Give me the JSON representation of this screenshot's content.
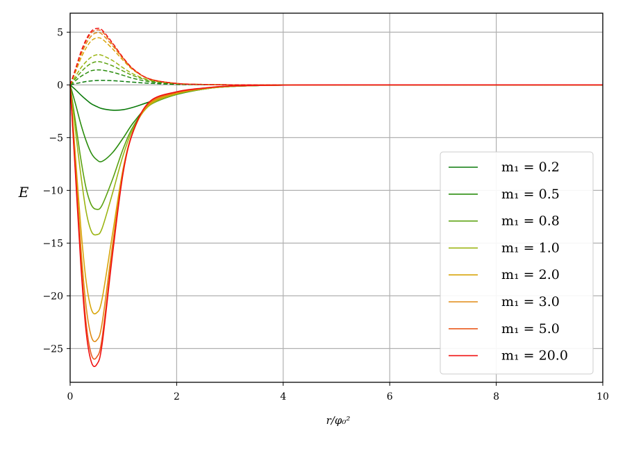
{
  "chart_data": {
    "type": "line",
    "title": "",
    "xlabel": "r/φ₀²",
    "ylabel": "E",
    "xlim": [
      0,
      10
    ],
    "ylim": [
      -28.2,
      6.8
    ],
    "xticks": [
      0,
      2,
      4,
      6,
      8,
      10
    ],
    "xtick_labels": [
      "0",
      "2",
      "4",
      "6",
      "8",
      "10"
    ],
    "yticks": [
      5,
      0,
      -5,
      -10,
      -15,
      -20,
      -25
    ],
    "ytick_labels": [
      "5",
      "0",
      "−5",
      "−10",
      "−15",
      "−20",
      "−25"
    ],
    "grid": true,
    "legend_position": "lower-right",
    "x": [
      0,
      0.1,
      0.2,
      0.3,
      0.4,
      0.5,
      0.6,
      0.8,
      1.0,
      1.2,
      1.5,
      2.0,
      2.5,
      3.0,
      4.0,
      5.0,
      10.0
    ],
    "series": [
      {
        "name": "m₁ = 0.2",
        "color": "#0a7a0a",
        "solid": [
          0,
          -0.45,
          -0.95,
          -1.4,
          -1.8,
          -2.05,
          -2.25,
          -2.4,
          -2.35,
          -2.1,
          -1.6,
          -0.9,
          -0.4,
          -0.15,
          -0.02,
          0,
          0
        ],
        "dashed": [
          0,
          0.12,
          0.22,
          0.32,
          0.38,
          0.42,
          0.43,
          0.4,
          0.33,
          0.25,
          0.15,
          0.05,
          0.02,
          0,
          0,
          0,
          0
        ]
      },
      {
        "name": "m₁ = 0.5",
        "color": "#2b8d0e",
        "solid": [
          0,
          -1.8,
          -3.7,
          -5.3,
          -6.5,
          -7.1,
          -7.25,
          -6.4,
          -5.0,
          -3.5,
          -1.9,
          -0.9,
          -0.4,
          -0.15,
          -0.02,
          0,
          0
        ],
        "dashed": [
          0,
          0.4,
          0.8,
          1.1,
          1.35,
          1.42,
          1.4,
          1.2,
          0.9,
          0.6,
          0.3,
          0.1,
          0.03,
          0.01,
          0,
          0,
          0
        ]
      },
      {
        "name": "m₁ = 0.8",
        "color": "#5aa10f",
        "solid": [
          0,
          -3.5,
          -7.0,
          -9.8,
          -11.4,
          -11.8,
          -11.4,
          -8.9,
          -6.0,
          -3.8,
          -1.9,
          -0.9,
          -0.4,
          -0.15,
          -0.02,
          0,
          0
        ],
        "dashed": [
          0,
          0.6,
          1.2,
          1.7,
          2.05,
          2.2,
          2.15,
          1.8,
          1.3,
          0.85,
          0.4,
          0.12,
          0.04,
          0.01,
          0,
          0,
          0
        ]
      },
      {
        "name": "m₁ = 1.0",
        "color": "#9bb412",
        "solid": [
          0,
          -4.3,
          -8.5,
          -12.0,
          -13.9,
          -14.2,
          -13.6,
          -10.2,
          -6.6,
          -4.0,
          -1.9,
          -0.85,
          -0.4,
          -0.15,
          -0.02,
          0,
          0
        ],
        "dashed": [
          0,
          0.8,
          1.6,
          2.2,
          2.65,
          2.85,
          2.8,
          2.3,
          1.6,
          1.0,
          0.45,
          0.13,
          0.04,
          0.01,
          0,
          0,
          0
        ]
      },
      {
        "name": "m₁ = 2.0",
        "color": "#d8a50a",
        "solid": [
          0,
          -6.8,
          -13.5,
          -18.6,
          -21.3,
          -21.6,
          -20.3,
          -14.0,
          -7.8,
          -4.2,
          -1.8,
          -0.8,
          -0.35,
          -0.12,
          -0.02,
          0,
          0
        ],
        "dashed": [
          0,
          1.2,
          2.5,
          3.5,
          4.2,
          4.45,
          4.35,
          3.4,
          2.3,
          1.35,
          0.55,
          0.14,
          0.04,
          0.01,
          0,
          0,
          0
        ]
      },
      {
        "name": "m₁ = 3.0",
        "color": "#e08a14",
        "solid": [
          0,
          -7.6,
          -15.3,
          -21.0,
          -23.9,
          -24.2,
          -22.6,
          -15.0,
          -8.0,
          -4.2,
          -1.7,
          -0.75,
          -0.35,
          -0.12,
          -0.02,
          0,
          0
        ],
        "dashed": [
          0,
          1.35,
          2.8,
          3.9,
          4.65,
          4.95,
          4.8,
          3.7,
          2.45,
          1.4,
          0.55,
          0.14,
          0.04,
          0.01,
          0,
          0,
          0
        ]
      },
      {
        "name": "m₁ = 5.0",
        "color": "#ea5a1e",
        "solid": [
          0,
          -8.2,
          -16.4,
          -22.6,
          -25.6,
          -25.8,
          -24.0,
          -15.6,
          -8.1,
          -4.2,
          -1.6,
          -0.7,
          -0.32,
          -0.11,
          -0.02,
          0,
          0
        ],
        "dashed": [
          0,
          1.45,
          3.0,
          4.15,
          4.95,
          5.2,
          5.05,
          3.85,
          2.5,
          1.42,
          0.55,
          0.14,
          0.04,
          0.01,
          0,
          0,
          0
        ]
      },
      {
        "name": "m₁ = 20.0",
        "color": "#f01010",
        "solid": [
          0,
          -8.5,
          -17.0,
          -23.4,
          -26.3,
          -26.5,
          -24.6,
          -15.9,
          -8.2,
          -4.2,
          -1.55,
          -0.65,
          -0.3,
          -0.1,
          -0.02,
          0,
          0
        ],
        "dashed": [
          0,
          1.5,
          3.1,
          4.3,
          5.1,
          5.35,
          5.2,
          3.95,
          2.55,
          1.45,
          0.55,
          0.14,
          0.04,
          0.01,
          0,
          0,
          0
        ]
      }
    ]
  }
}
